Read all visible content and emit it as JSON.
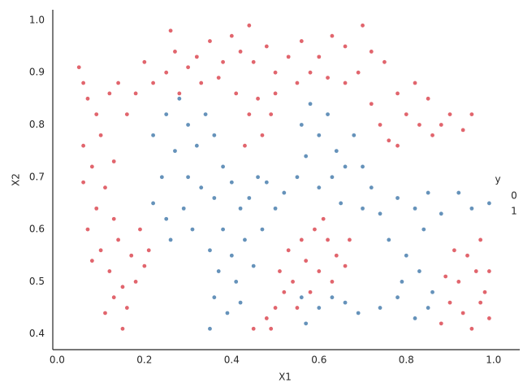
{
  "chart_data": {
    "type": "scatter",
    "x_label": "X1",
    "y_label": "X2",
    "legend_title": "y",
    "legend": "right",
    "xlim": [
      -0.01,
      1.06
    ],
    "ylim": [
      0.37,
      1.02
    ],
    "xticks": [
      {
        "value": 0,
        "label": "0.0"
      },
      0.2,
      0.4,
      0.6,
      0.8,
      {
        "value": 1,
        "label": "1.0"
      }
    ],
    "yticks": [
      0.4,
      0.5,
      0.6,
      0.7,
      0.8,
      0.9,
      {
        "value": 1,
        "label": "1.0"
      }
    ],
    "series": [
      {
        "name": "0",
        "color": "#dc4a53",
        "x": [
          0.05,
          0.06,
          0.07,
          0.09,
          0.06,
          0.08,
          0.1,
          0.12,
          0.14,
          0.16,
          0.18,
          0.11,
          0.09,
          0.13,
          0.07,
          0.1,
          0.14,
          0.17,
          0.12,
          0.15,
          0.13,
          0.16,
          0.15,
          0.18,
          0.2,
          0.11,
          0.06,
          0.13,
          0.08,
          0.19,
          0.21,
          0.2,
          0.22,
          0.25,
          0.27,
          0.3,
          0.32,
          0.35,
          0.38,
          0.4,
          0.42,
          0.45,
          0.48,
          0.5,
          0.53,
          0.56,
          0.6,
          0.63,
          0.66,
          0.7,
          0.72,
          0.75,
          0.33,
          0.28,
          0.37,
          0.41,
          0.44,
          0.47,
          0.46,
          0.49,
          0.43,
          0.5,
          0.55,
          0.58,
          0.62,
          0.66,
          0.69,
          0.26,
          0.44,
          0.72,
          0.74,
          0.76,
          0.78,
          0.8,
          0.83,
          0.82,
          0.86,
          0.88,
          0.9,
          0.93,
          0.95,
          0.78,
          0.85,
          0.45,
          0.48,
          0.5,
          0.52,
          0.51,
          0.54,
          0.53,
          0.56,
          0.57,
          0.59,
          0.62,
          0.64,
          0.66,
          0.6,
          0.63,
          0.58,
          0.55,
          0.49,
          0.67,
          0.61,
          0.88,
          0.9,
          0.92,
          0.94,
          0.96,
          0.98,
          0.99,
          0.93,
          0.97,
          0.91,
          0.95,
          0.99,
          0.89,
          0.97
        ],
        "values": [
          0.91,
          0.88,
          0.85,
          0.82,
          0.76,
          0.72,
          0.78,
          0.86,
          0.88,
          0.82,
          0.86,
          0.68,
          0.64,
          0.62,
          0.6,
          0.56,
          0.58,
          0.55,
          0.52,
          0.49,
          0.47,
          0.45,
          0.41,
          0.5,
          0.53,
          0.44,
          0.69,
          0.73,
          0.54,
          0.6,
          0.56,
          0.92,
          0.88,
          0.9,
          0.94,
          0.91,
          0.93,
          0.96,
          0.92,
          0.97,
          0.94,
          0.92,
          0.95,
          0.9,
          0.93,
          0.96,
          0.93,
          0.97,
          0.95,
          0.99,
          0.94,
          0.92,
          0.88,
          0.86,
          0.89,
          0.86,
          0.82,
          0.78,
          0.85,
          0.82,
          0.76,
          0.86,
          0.88,
          0.9,
          0.89,
          0.88,
          0.9,
          0.98,
          0.99,
          0.84,
          0.8,
          0.77,
          0.86,
          0.82,
          0.8,
          0.88,
          0.78,
          0.8,
          0.82,
          0.79,
          0.82,
          0.76,
          0.85,
          0.41,
          0.43,
          0.45,
          0.48,
          0.52,
          0.5,
          0.56,
          0.58,
          0.54,
          0.6,
          0.58,
          0.55,
          0.53,
          0.52,
          0.5,
          0.48,
          0.45,
          0.41,
          0.58,
          0.62,
          0.42,
          0.46,
          0.5,
          0.55,
          0.52,
          0.48,
          0.43,
          0.44,
          0.58,
          0.56,
          0.41,
          0.52,
          0.51,
          0.46
        ]
      },
      {
        "name": "1",
        "color": "#4a7fae",
        "x": [
          0.22,
          0.24,
          0.22,
          0.25,
          0.28,
          0.3,
          0.27,
          0.3,
          0.32,
          0.34,
          0.36,
          0.38,
          0.33,
          0.29,
          0.25,
          0.36,
          0.4,
          0.42,
          0.38,
          0.35,
          0.4,
          0.43,
          0.37,
          0.41,
          0.36,
          0.39,
          0.35,
          0.42,
          0.45,
          0.47,
          0.5,
          0.52,
          0.48,
          0.55,
          0.57,
          0.56,
          0.58,
          0.6,
          0.62,
          0.64,
          0.66,
          0.63,
          0.68,
          0.7,
          0.72,
          0.6,
          0.65,
          0.7,
          0.74,
          0.78,
          0.82,
          0.85,
          0.88,
          0.92,
          0.95,
          0.99,
          0.76,
          0.8,
          0.84,
          0.79,
          0.83,
          0.86,
          0.74,
          0.78,
          0.82,
          0.85,
          0.57,
          0.6,
          0.63,
          0.66,
          0.69,
          0.56,
          0.44,
          0.46,
          0.26,
          0.31
        ],
        "values": [
          0.65,
          0.7,
          0.78,
          0.82,
          0.85,
          0.8,
          0.75,
          0.7,
          0.76,
          0.82,
          0.78,
          0.72,
          0.68,
          0.64,
          0.62,
          0.66,
          0.69,
          0.64,
          0.6,
          0.56,
          0.55,
          0.58,
          0.52,
          0.5,
          0.47,
          0.44,
          0.41,
          0.46,
          0.53,
          0.6,
          0.64,
          0.67,
          0.69,
          0.7,
          0.74,
          0.8,
          0.84,
          0.78,
          0.82,
          0.75,
          0.72,
          0.7,
          0.78,
          0.72,
          0.68,
          0.68,
          0.65,
          0.64,
          0.63,
          0.66,
          0.64,
          0.67,
          0.63,
          0.67,
          0.64,
          0.65,
          0.58,
          0.55,
          0.6,
          0.5,
          0.52,
          0.48,
          0.45,
          0.47,
          0.43,
          0.45,
          0.42,
          0.45,
          0.47,
          0.46,
          0.44,
          0.47,
          0.66,
          0.7,
          0.58,
          0.6
        ]
      }
    ]
  }
}
